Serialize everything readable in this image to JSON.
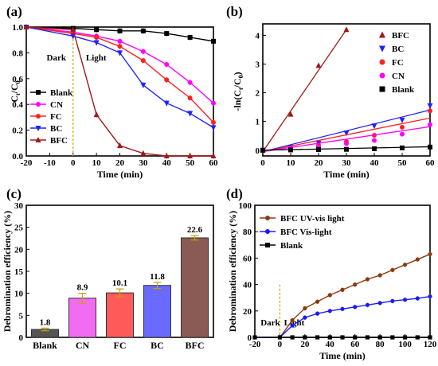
{
  "chart_data": [
    {
      "panel": "(a)",
      "type": "line",
      "xlabel": "Time (min)",
      "ylabel": "Ct/C0",
      "xlim": [
        -20,
        60
      ],
      "ylim": [
        0,
        1.0
      ],
      "xticks": [
        "-20",
        "-10",
        "0",
        "10",
        "20",
        "30",
        "40",
        "50",
        "60"
      ],
      "yticks": [
        "0.0",
        "0.2",
        "0.4",
        "0.6",
        "0.8",
        "1.0"
      ],
      "annotations": [
        "Dark",
        "Light"
      ],
      "legend_position": "left",
      "series": [
        {
          "name": "Blank",
          "marker": "square",
          "color": "#000000",
          "x": [
            -20,
            0,
            10,
            20,
            30,
            40,
            50,
            60
          ],
          "y": [
            1.0,
            0.99,
            0.98,
            0.97,
            0.97,
            0.95,
            0.92,
            0.89
          ]
        },
        {
          "name": "CN",
          "marker": "circle",
          "color": "#ff00ff",
          "x": [
            -20,
            0,
            10,
            20,
            30,
            40,
            50,
            60
          ],
          "y": [
            1.0,
            0.96,
            0.93,
            0.89,
            0.81,
            0.71,
            0.57,
            0.41
          ]
        },
        {
          "name": "FC",
          "marker": "circle",
          "color": "#ff2020",
          "x": [
            -20,
            0,
            10,
            20,
            30,
            40,
            50,
            60
          ],
          "y": [
            1.0,
            0.95,
            0.92,
            0.85,
            0.74,
            0.59,
            0.45,
            0.26
          ]
        },
        {
          "name": "BC",
          "marker": "triangle-down",
          "color": "#2020ff",
          "x": [
            -20,
            0,
            10,
            20,
            30,
            40,
            50,
            60
          ],
          "y": [
            1.0,
            0.93,
            0.88,
            0.8,
            0.55,
            0.41,
            0.33,
            0.22
          ]
        },
        {
          "name": "BFC",
          "marker": "triangle-up",
          "color": "#a01818",
          "x": [
            -20,
            0,
            10,
            20,
            30,
            40,
            50,
            60
          ],
          "y": [
            1.0,
            0.98,
            0.32,
            0.08,
            0.02,
            0.0,
            0.0,
            0.0
          ]
        }
      ]
    },
    {
      "panel": "(b)",
      "type": "scatter",
      "xlabel": "Time (min)",
      "ylabel": "-ln(Ct/C0)",
      "xlim": [
        0,
        60
      ],
      "ylim": [
        -0.2,
        4.4
      ],
      "xticks": [
        "0",
        "10",
        "20",
        "30",
        "40",
        "50",
        "60"
      ],
      "yticks": [
        "0",
        "1",
        "2",
        "3",
        "4"
      ],
      "legend_position": "top-right",
      "series": [
        {
          "name": "BFC",
          "marker": "triangle-up",
          "color": "#a01818",
          "x": [
            0,
            10,
            20,
            30
          ],
          "y": [
            0,
            1.25,
            2.95,
            4.2
          ],
          "fit": [
            [
              0,
              -0.05
            ],
            [
              30,
              4.2
            ]
          ]
        },
        {
          "name": "BC",
          "marker": "triangle-down",
          "color": "#2020ff",
          "x": [
            0,
            10,
            20,
            30,
            40,
            50,
            60
          ],
          "y": [
            0,
            0.1,
            0.25,
            0.6,
            0.85,
            1.05,
            1.55
          ],
          "fit": [
            [
              0,
              -0.05
            ],
            [
              60,
              1.4
            ]
          ]
        },
        {
          "name": "FC",
          "marker": "circle",
          "color": "#ff2020",
          "x": [
            0,
            10,
            20,
            30,
            40,
            50,
            60
          ],
          "y": [
            0,
            0.08,
            0.18,
            0.3,
            0.52,
            0.8,
            1.37
          ],
          "fit": [
            [
              0,
              -0.05
            ],
            [
              60,
              1.12
            ]
          ]
        },
        {
          "name": "CN",
          "marker": "circle",
          "color": "#ff00ff",
          "x": [
            0,
            10,
            20,
            30,
            40,
            50,
            60
          ],
          "y": [
            0,
            0.07,
            0.12,
            0.23,
            0.34,
            0.56,
            0.89
          ],
          "fit": [
            [
              0,
              -0.05
            ],
            [
              60,
              0.82
            ]
          ]
        },
        {
          "name": "Blank",
          "marker": "square",
          "color": "#000000",
          "x": [
            0,
            10,
            20,
            30,
            40,
            50,
            60
          ],
          "y": [
            0,
            0.01,
            0.02,
            0.03,
            0.05,
            0.08,
            0.11
          ],
          "fit": [
            [
              0,
              0.0
            ],
            [
              60,
              0.12
            ]
          ]
        }
      ]
    },
    {
      "panel": "(c)",
      "type": "bar",
      "ylabel": "Debromination efficiency (%)",
      "ylim": [
        0,
        30
      ],
      "yticks": [
        "0",
        "5",
        "10",
        "15",
        "20",
        "25",
        "30"
      ],
      "categories": [
        "Blank",
        "CN",
        "FC",
        "BC",
        "BFC"
      ],
      "values": [
        1.8,
        8.9,
        10.1,
        11.8,
        22.6
      ],
      "value_labels": [
        "1.8",
        "8.9",
        "10.1",
        "11.8",
        "22.6"
      ],
      "errors": [
        0.3,
        1.1,
        0.9,
        0.7,
        0.5
      ],
      "colors": [
        "#555555",
        "#f06cf0",
        "#ff5a5a",
        "#6a6aff",
        "#8a5a54"
      ]
    },
    {
      "panel": "(d)",
      "type": "line",
      "xlabel": "Time (min)",
      "ylabel": "Debromination efficiency (%)",
      "xlim": [
        -20,
        120
      ],
      "ylim": [
        0,
        100
      ],
      "xticks": [
        "-20",
        "0",
        "20",
        "40",
        "60",
        "80",
        "100",
        "120"
      ],
      "yticks": [
        "0",
        "20",
        "40",
        "60",
        "80",
        "100"
      ],
      "annotations": [
        "Dark",
        "Light"
      ],
      "legend_position": "top-left",
      "series": [
        {
          "name": "BFC UV-vis light",
          "marker": "circle",
          "color": "#8b3a10",
          "x": [
            -20,
            0,
            10,
            20,
            30,
            40,
            50,
            60,
            70,
            80,
            90,
            100,
            110,
            120
          ],
          "y": [
            0,
            0,
            13,
            22,
            27,
            32,
            36,
            40,
            44,
            47,
            51,
            55,
            59,
            63
          ]
        },
        {
          "name": "BFC Vis-light",
          "marker": "circle",
          "color": "#1a1aff",
          "x": [
            -20,
            0,
            10,
            20,
            30,
            40,
            50,
            60,
            70,
            80,
            90,
            100,
            110,
            120
          ],
          "y": [
            0,
            0,
            9,
            15,
            18,
            20,
            21.5,
            23,
            24.5,
            26,
            27.5,
            28.5,
            29.5,
            31
          ]
        },
        {
          "name": "Blank",
          "marker": "square",
          "color": "#000000",
          "x": [
            -20,
            0,
            10,
            20,
            30,
            40,
            50,
            60,
            70,
            80,
            90,
            100,
            110,
            120
          ],
          "y": [
            0,
            0,
            0,
            0,
            0,
            0,
            0,
            0,
            0,
            0,
            0,
            0,
            0,
            0
          ]
        }
      ]
    }
  ]
}
